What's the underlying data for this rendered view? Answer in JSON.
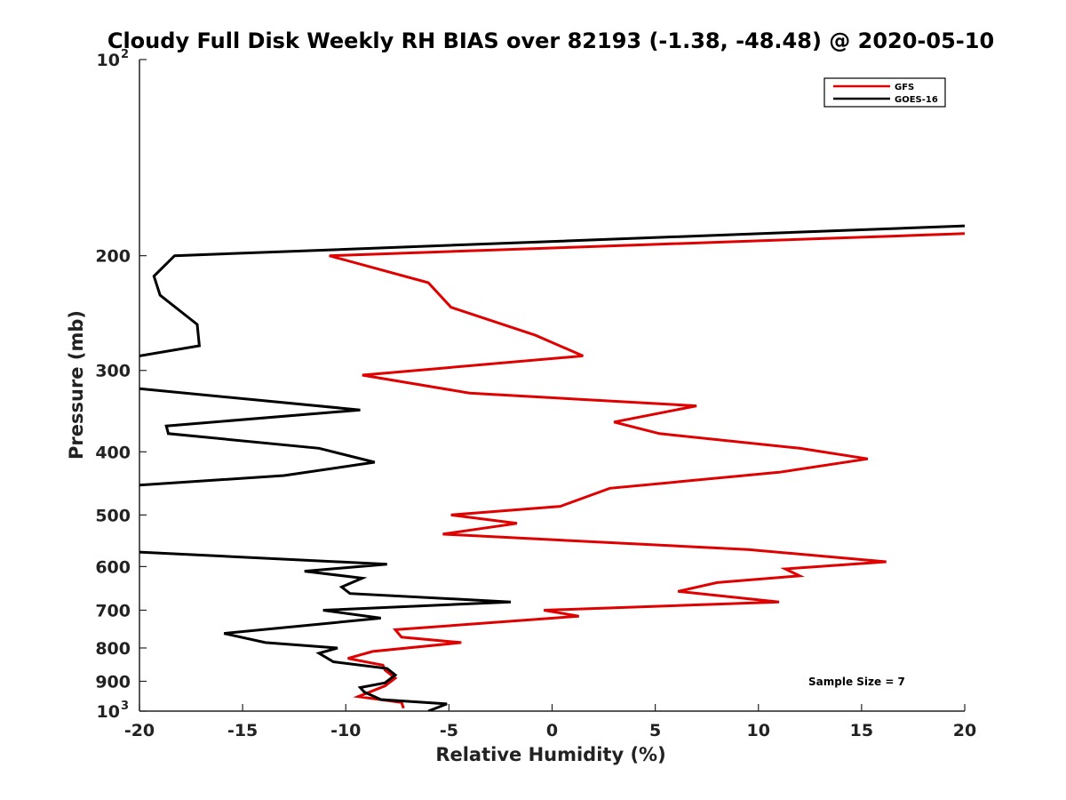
{
  "chart_data": {
    "type": "line",
    "title": "Cloudy Full Disk Weekly RH BIAS over 82193 (-1.38, -48.48) @ 2020-05-10",
    "xlabel": "Relative Humidity (%)",
    "ylabel": "Pressure (mb)",
    "xlim": [
      -20,
      20
    ],
    "ylim": [
      100,
      1000
    ],
    "yscale": "log",
    "y_reversed": true,
    "xticks": [
      -20,
      -15,
      -10,
      -5,
      0,
      5,
      10,
      15,
      20
    ],
    "yticks": [
      {
        "value": 200,
        "label": "200"
      },
      {
        "value": 300,
        "label": "300"
      },
      {
        "value": 400,
        "label": "400"
      },
      {
        "value": 500,
        "label": "500"
      },
      {
        "value": 600,
        "label": "600"
      },
      {
        "value": 700,
        "label": "700"
      },
      {
        "value": 800,
        "label": "800"
      },
      {
        "value": 900,
        "label": "900"
      }
    ],
    "ylim_labels": {
      "top_base": "10",
      "top_exp": "2",
      "bottom_base": "10",
      "bottom_exp": "3"
    },
    "grid": false,
    "legend_position": "top-right",
    "annotation": "Sample Size = 7",
    "series": [
      {
        "name": "GFS",
        "color": "#e00000",
        "x": [
          20,
          -10.8,
          -6,
          -4.9,
          -0.8,
          1.5,
          -9.2,
          -4,
          7,
          3,
          5.2,
          12,
          15.3,
          11,
          2.8,
          0.4,
          -4.9,
          -1.7,
          -5.3,
          9.5,
          16.2,
          11.3,
          12,
          8,
          6.1,
          11,
          -0.4,
          1.3,
          -7.6,
          -7.3,
          -4.4,
          -8.7,
          -9.9,
          -8.2,
          -8.1,
          -7.6,
          -8.1,
          -9.4,
          -7.3,
          -7.2
        ],
        "y": [
          185,
          200,
          220,
          240,
          265,
          285,
          305,
          325,
          340,
          360,
          375,
          395,
          410,
          430,
          455,
          485,
          500,
          515,
          535,
          565,
          590,
          605,
          620,
          635,
          655,
          680,
          700,
          715,
          750,
          770,
          785,
          810,
          830,
          850,
          865,
          890,
          915,
          950,
          970,
          990
        ]
      },
      {
        "name": "GOES-16",
        "color": "#000000",
        "x": [
          20,
          -18.3,
          -19.3,
          -19,
          -17.2,
          -17.1,
          -20,
          null,
          -20,
          -9.3,
          -18.7,
          -18.6,
          -11.3,
          -8.6,
          -13,
          -20,
          null,
          -20,
          -8,
          -12,
          -9.2,
          -10.2,
          -9.8,
          -2,
          -11.1,
          -8.3,
          -15.9,
          -13.9,
          -10.4,
          -11.3,
          -10.6,
          -8,
          -7.6,
          -8.1,
          -9.3,
          -9.1,
          -8.3,
          -5.1,
          -6
        ],
        "y": [
          180,
          200,
          215,
          230,
          255,
          275,
          285,
          null,
          320,
          345,
          365,
          375,
          395,
          415,
          435,
          450,
          null,
          570,
          595,
          610,
          625,
          645,
          660,
          680,
          700,
          720,
          760,
          785,
          800,
          815,
          840,
          860,
          880,
          905,
          920,
          935,
          960,
          975,
          1000
        ]
      }
    ]
  }
}
